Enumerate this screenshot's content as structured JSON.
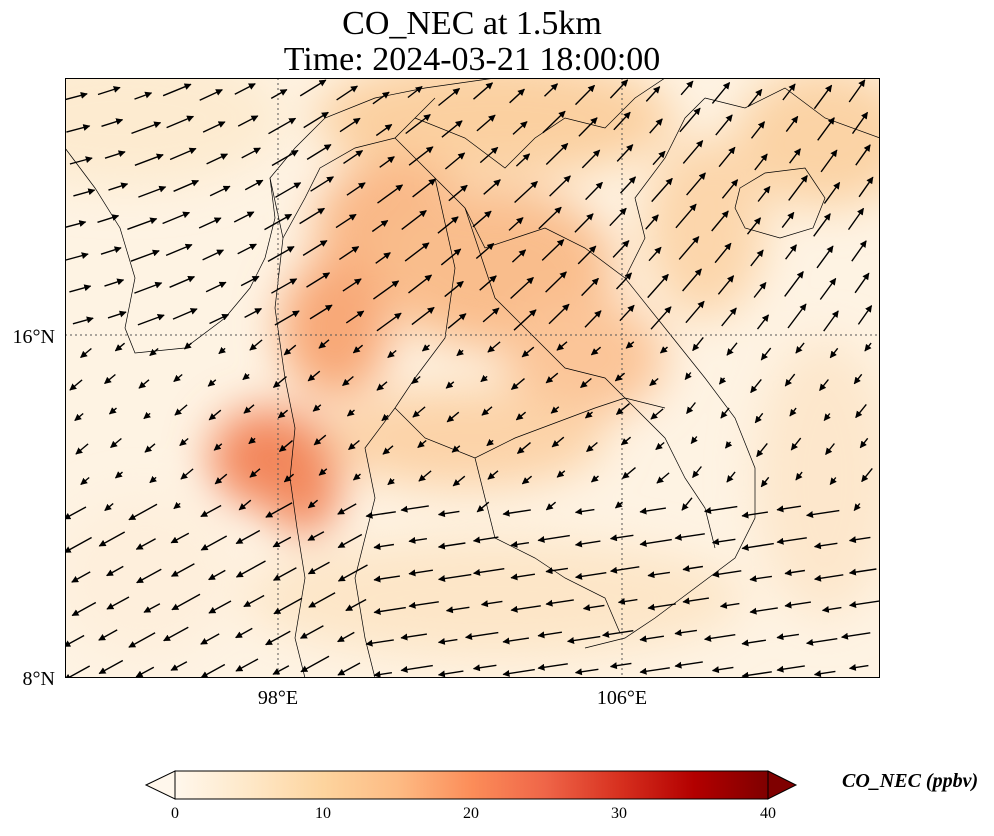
{
  "title": {
    "line1": "CO_NEC at 1.5km",
    "line2": "Time: 2024-03-21 18:00:00"
  },
  "map": {
    "lat_ticks": [
      "16°N",
      "8°N"
    ],
    "lon_ticks": [
      "98°E",
      "106°E"
    ],
    "gridlines": true,
    "field": "CO_NEC",
    "colormap": "OrRd",
    "wind_vectors": true
  },
  "colorbar": {
    "label": "CO_NEC (ppbv)",
    "ticks": [
      "0",
      "10",
      "20",
      "30",
      "40"
    ],
    "min": 0,
    "max": 40,
    "extend": "both",
    "colors": [
      "#fff7ec",
      "#fee8c8",
      "#fdd49e",
      "#fdbb84",
      "#fc8d59",
      "#ef6548",
      "#d7301f",
      "#b30000",
      "#7f0000"
    ]
  }
}
